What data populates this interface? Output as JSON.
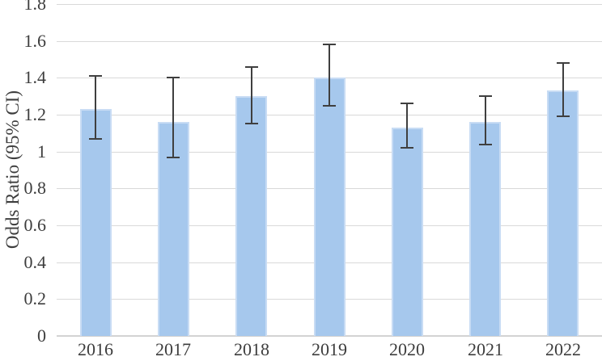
{
  "chart_data": {
    "type": "bar",
    "title": "",
    "xlabel": "",
    "ylabel": "Odds Ratio (95% CI)",
    "categories": [
      "2016",
      "2017",
      "2018",
      "2019",
      "2020",
      "2021",
      "2022"
    ],
    "series": [
      {
        "name": "Odds Ratio",
        "values": [
          1.23,
          1.16,
          1.3,
          1.4,
          1.13,
          1.16,
          1.33
        ],
        "ci_upper": [
          1.41,
          1.4,
          1.46,
          1.58,
          1.26,
          1.3,
          1.48
        ],
        "ci_lower": [
          1.07,
          0.97,
          1.15,
          1.25,
          1.02,
          1.04,
          1.19
        ]
      }
    ],
    "ylim": [
      0,
      1.8
    ],
    "ytick_labels": [
      "0",
      "0.2",
      "0.4",
      "0.6",
      "0.8",
      "1",
      "1.2",
      "1.4",
      "1.6",
      "1.8"
    ],
    "grid": true,
    "legend": false,
    "colors": {
      "bar_fill": "#a6c8ed",
      "bar_border": "#c8dcf4",
      "error_bar": "#3f3f3f",
      "gridline": "#d9d9d9",
      "axis_line": "#d3d3d3",
      "text": "#3d3d3d",
      "background": "#ffffff"
    }
  }
}
